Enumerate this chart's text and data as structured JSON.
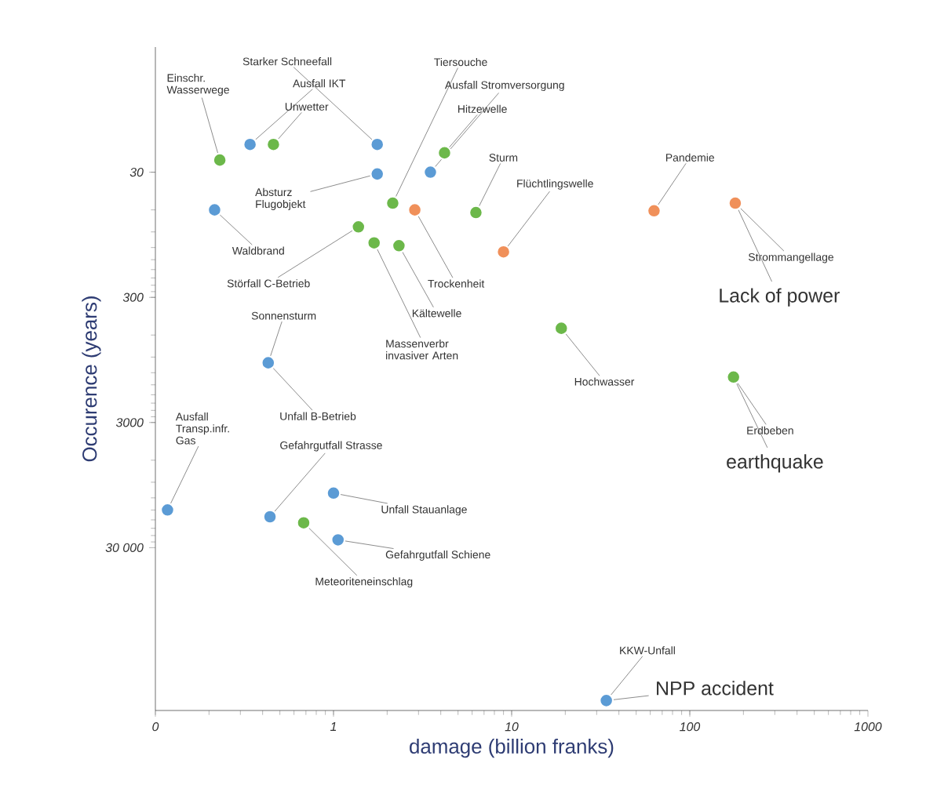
{
  "chart_data": {
    "type": "scatter",
    "xlabel": "damage  (billion franks)",
    "ylabel": "Occurence  (years)",
    "log": "xy",
    "grid": false,
    "xlim": [
      0.1,
      1000
    ],
    "xticks": [
      {
        "value": 0.1,
        "label": "0"
      },
      1,
      10,
      100,
      1000
    ],
    "ylim": [
      600000,
      3
    ],
    "yticks": [
      30,
      300,
      3000,
      {
        "value": 30000,
        "label": "30 000"
      }
    ],
    "series": [
      {
        "color": "#5b9bd5",
        "x": [
          0.34,
          0.215,
          1.76,
          1.76,
          3.5,
          0.43,
          0.117,
          0.44,
          1.0,
          1.06,
          34
        ],
        "values": [
          18,
          60,
          18,
          31,
          30,
          1000,
          15000,
          17000,
          11000,
          26000,
          500000
        ]
      },
      {
        "color": "#6cb84a",
        "x": [
          0.23,
          0.46,
          4.2,
          2.15,
          6.3,
          1.38,
          1.69,
          2.33,
          19,
          176,
          0.68
        ],
        "values": [
          24,
          18,
          21,
          53,
          63,
          82,
          110,
          116,
          530,
          1300,
          19000
        ]
      },
      {
        "color": "#f0905a",
        "x": [
          2.86,
          9.0,
          63,
          180
        ],
        "values": [
          60,
          130,
          61,
          53
        ]
      }
    ],
    "annotations": [
      {
        "text": "Einschr. Wasserwege",
        "x": 0.23,
        "y": 24
      },
      {
        "text": "Starker Schneefall",
        "x": 1.76,
        "y": 18
      },
      {
        "text": "Ausfall IKT",
        "x": 0.34,
        "y": 18
      },
      {
        "text": "Unwetter",
        "x": 0.46,
        "y": 18
      },
      {
        "text": "Tiersouche",
        "x": 2.15,
        "y": 53
      },
      {
        "text": "Ausfall Stromversorgung",
        "x": 3.5,
        "y": 30
      },
      {
        "text": "Hitzewelle",
        "x": 4.2,
        "y": 21
      },
      {
        "text": "Sturm",
        "x": 6.3,
        "y": 63
      },
      {
        "text": "Flüchtlingswelle",
        "x": 9.0,
        "y": 130
      },
      {
        "text": "Absturz Flugobjekt",
        "x": 1.76,
        "y": 31
      },
      {
        "text": "Waldbrand",
        "x": 0.215,
        "y": 60
      },
      {
        "text": "Störfall C-Betrieb",
        "x": 1.38,
        "y": 82
      },
      {
        "text": "Sonnensturm",
        "x": 0.43,
        "y": 1000
      },
      {
        "text": "Trockenheit",
        "x": 2.86,
        "y": 60
      },
      {
        "text": "Kältewelle",
        "x": 2.33,
        "y": 116
      },
      {
        "text": "Massenverbr invasiver Arten",
        "x": 1.69,
        "y": 110
      },
      {
        "text": "Pandemie",
        "x": 63,
        "y": 61
      },
      {
        "text": "Strommangellage",
        "x": 180,
        "y": 53
      },
      {
        "text": "Lack of power",
        "x": 180,
        "y": 53
      },
      {
        "text": "Hochwasser",
        "x": 19,
        "y": 530
      },
      {
        "text": "Erdbeben",
        "x": 176,
        "y": 1300
      },
      {
        "text": "earthquake",
        "x": 176,
        "y": 1300
      },
      {
        "text": "Ausfall Transp.infr. Gas",
        "x": 0.117,
        "y": 15000
      },
      {
        "text": "Unfall B-Betrieb",
        "x": 0.43,
        "y": 1000
      },
      {
        "text": "Gefahrgutfall Strasse",
        "x": 0.44,
        "y": 17000
      },
      {
        "text": "Unfall Stauanlage",
        "x": 1.0,
        "y": 11000
      },
      {
        "text": "Gefahrgutfall Schiene",
        "x": 1.06,
        "y": 26000
      },
      {
        "text": "Meteoriteneinschlag",
        "x": 0.68,
        "y": 19000
      },
      {
        "text": "KKW-Unfall",
        "x": 34,
        "y": 500000
      },
      {
        "text": "NPP accident",
        "x": 34,
        "y": 500000
      }
    ]
  }
}
